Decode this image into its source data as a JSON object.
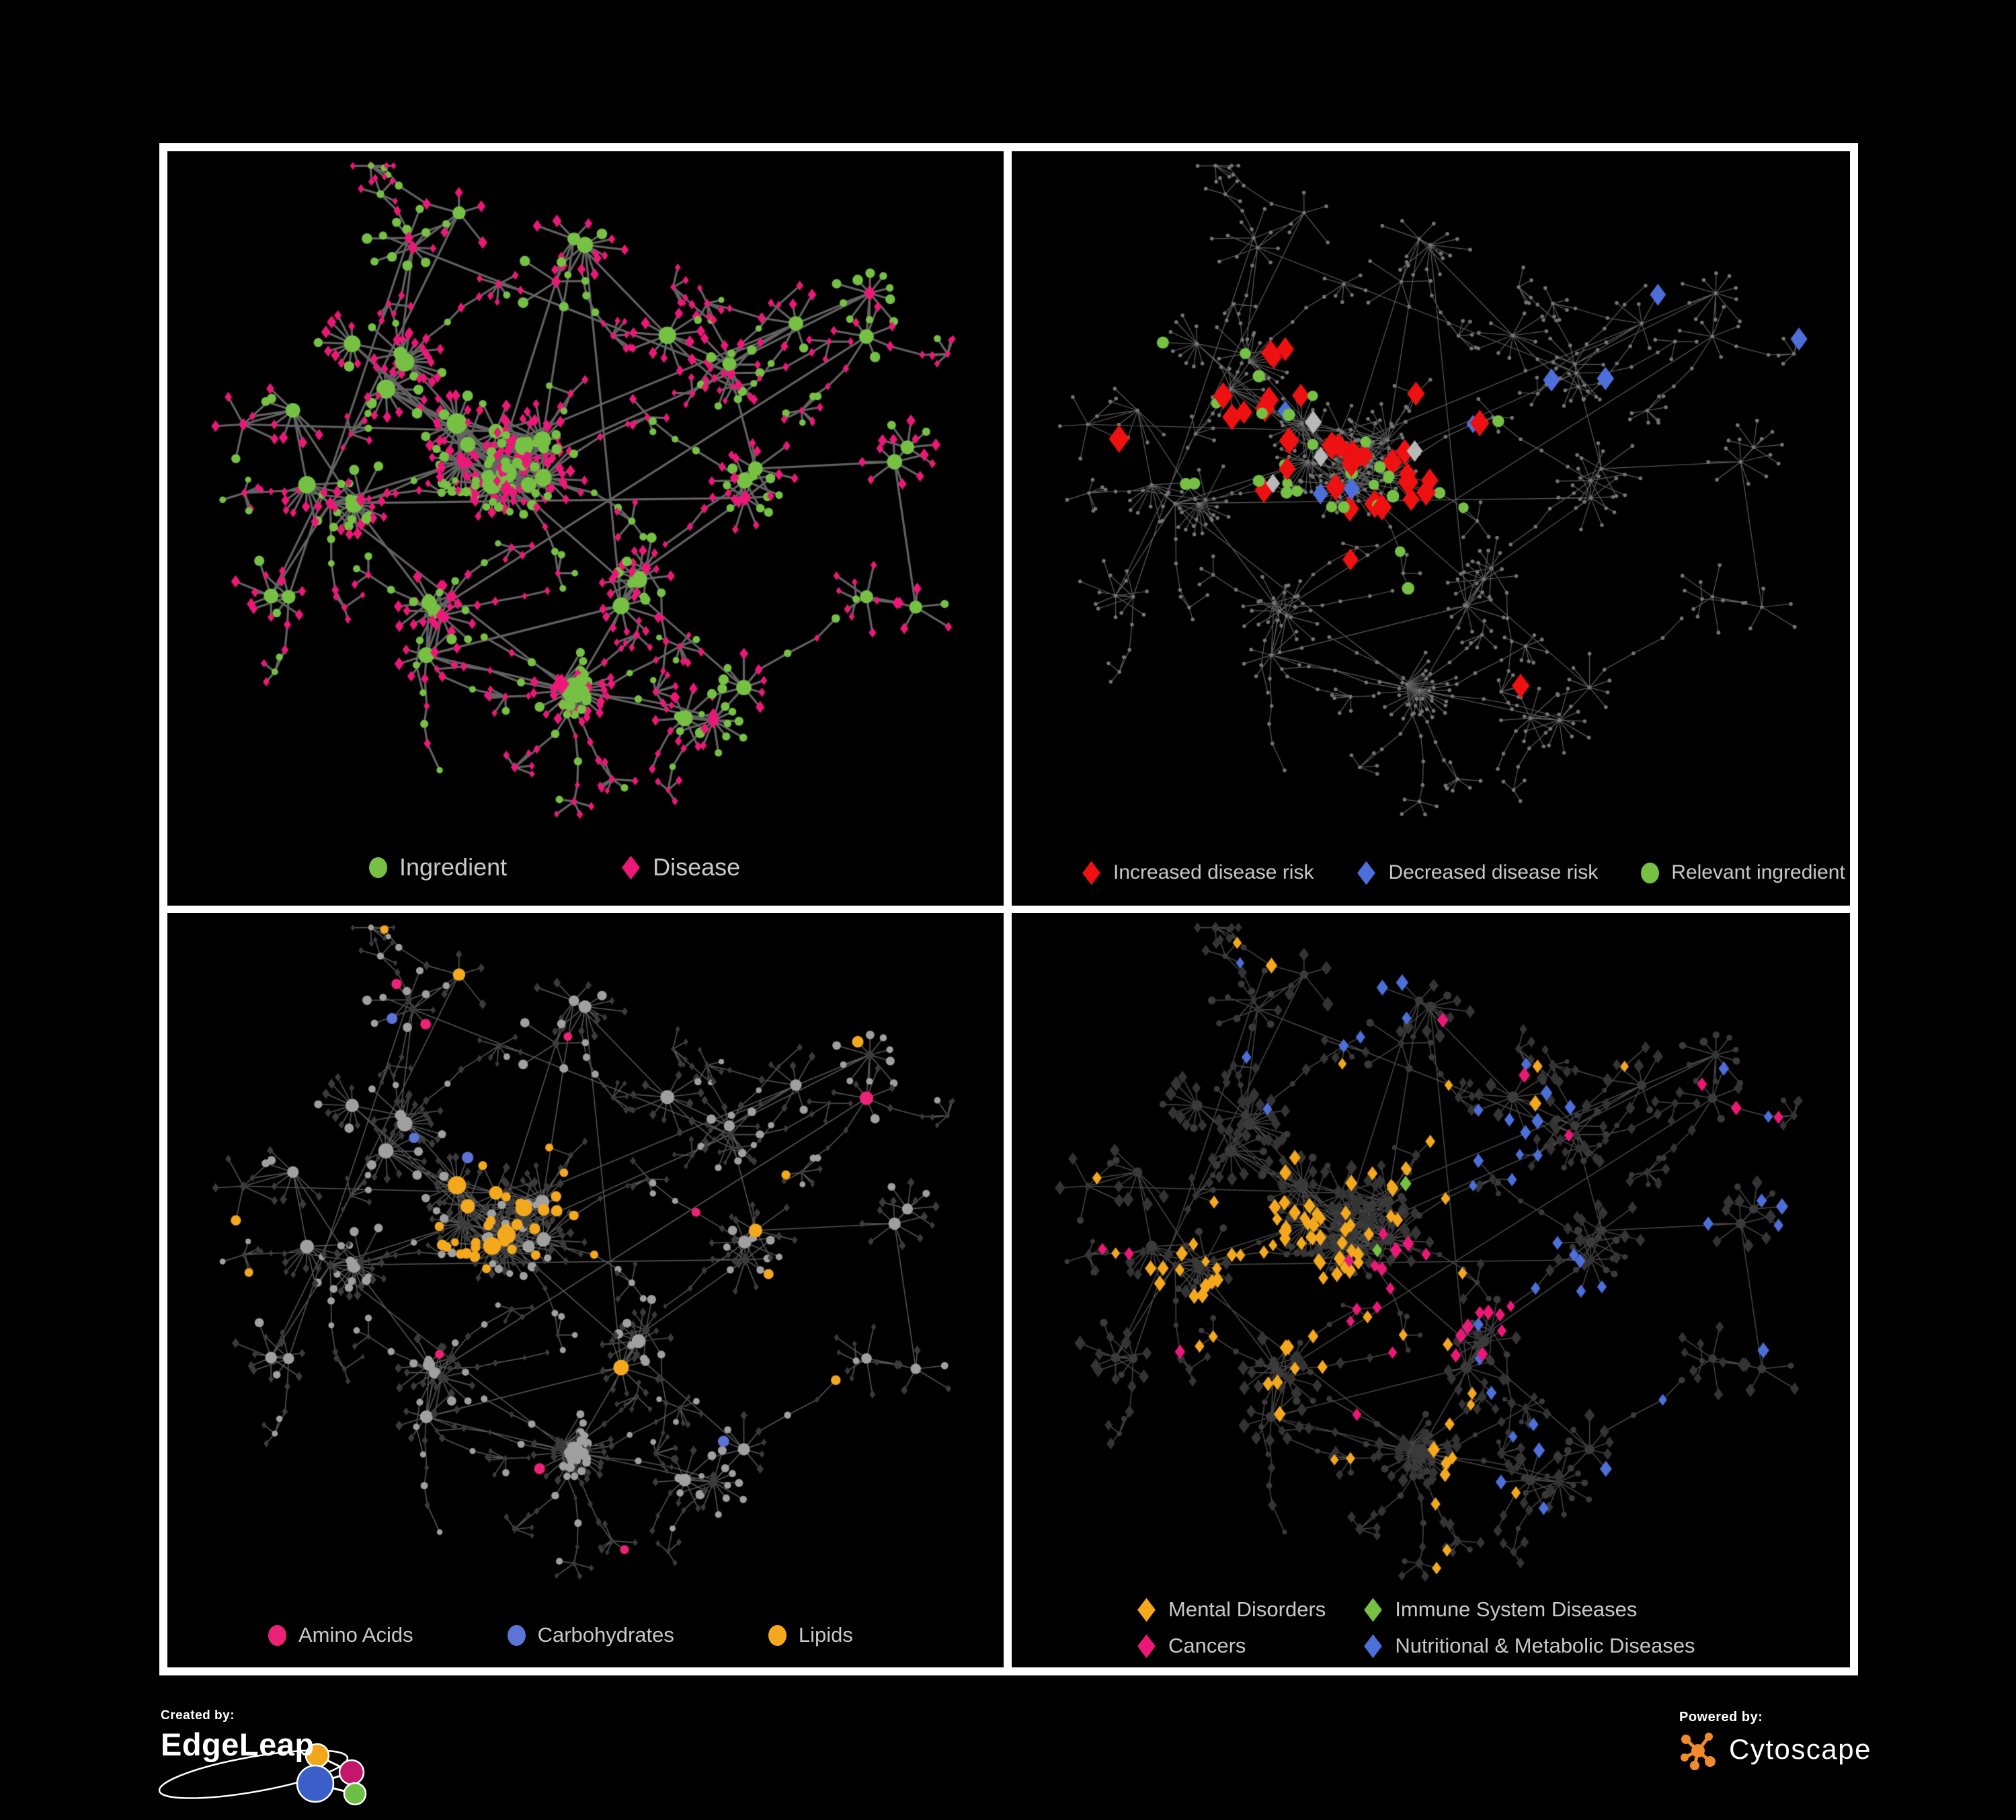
{
  "colors": {
    "background": "#000000",
    "panel_border": "#ffffff",
    "legend_text": "#c8c8c8",
    "footer_text": "#ffffff",
    "cytoscape_orange": "#ef8b2c"
  },
  "panels": [
    {
      "id": "ingredient-disease-network",
      "legend": [
        {
          "label": "Ingredient",
          "shape": "circle",
          "color": "#76c043"
        },
        {
          "label": "Disease",
          "shape": "diamond",
          "color": "#ec1878"
        }
      ]
    },
    {
      "id": "disease-risk-network",
      "legend": [
        {
          "label": "Increased disease risk",
          "shape": "diamond",
          "color": "#ee1111"
        },
        {
          "label": "Decreased disease risk",
          "shape": "diamond",
          "color": "#4d6fd9"
        },
        {
          "label": "Relevant ingredient",
          "shape": "circle",
          "color": "#76c043"
        }
      ]
    },
    {
      "id": "ingredient-class-network",
      "legend": [
        {
          "label": "Amino Acids",
          "shape": "circle",
          "color": "#ec2277"
        },
        {
          "label": "Carbohydrates",
          "shape": "circle",
          "color": "#5b74d6"
        },
        {
          "label": "Lipids",
          "shape": "circle",
          "color": "#f4a81d"
        }
      ]
    },
    {
      "id": "disease-class-network",
      "legend": [
        {
          "label": "Mental Disorders",
          "shape": "diamond",
          "color": "#f4a81d"
        },
        {
          "label": "Immune System Diseases",
          "shape": "diamond",
          "color": "#76c043"
        },
        {
          "label": "Cancers",
          "shape": "diamond",
          "color": "#ec1878"
        },
        {
          "label": "Nutritional & Metabolic Diseases",
          "shape": "diamond",
          "color": "#4d6fd9"
        }
      ]
    }
  ],
  "footer": {
    "created_by_label": "Created by:",
    "created_by_name": "EdgeLeap",
    "powered_by_label": "Powered by:",
    "powered_by_name": "Cytoscape"
  },
  "network": {
    "seed": 7,
    "core": [
      0.4,
      0.42
    ],
    "anchors": [
      [
        0.4,
        0.42,
        13,
        0.055,
        7,
        16
      ],
      [
        0.27,
        0.3,
        4,
        0.05,
        6,
        14
      ],
      [
        0.21,
        0.48,
        4,
        0.045,
        6,
        12
      ],
      [
        0.3,
        0.66,
        4,
        0.05,
        6,
        13
      ],
      [
        0.46,
        0.76,
        2,
        0.03,
        18,
        26
      ],
      [
        0.57,
        0.6,
        3,
        0.045,
        6,
        12
      ],
      [
        0.7,
        0.46,
        3,
        0.05,
        6,
        12
      ],
      [
        0.64,
        0.28,
        3,
        0.045,
        6,
        12
      ],
      [
        0.5,
        0.14,
        3,
        0.05,
        5,
        10
      ],
      [
        0.32,
        0.12,
        3,
        0.05,
        5,
        10
      ],
      [
        0.13,
        0.38,
        2,
        0.04,
        5,
        9
      ],
      [
        0.8,
        0.22,
        3,
        0.05,
        6,
        12
      ],
      [
        0.88,
        0.42,
        2,
        0.035,
        5,
        9
      ],
      [
        0.66,
        0.76,
        3,
        0.05,
        6,
        12
      ],
      [
        0.86,
        0.6,
        2,
        0.035,
        5,
        9
      ],
      [
        0.15,
        0.62,
        2,
        0.04,
        5,
        9
      ]
    ],
    "render": {
      "p1": {
        "edge": "#7b7b7b",
        "edgeWidth": 3.2,
        "edgeAlpha": 0.8
      },
      "p2": {
        "edge": "#686868",
        "edgeWidth": 1.2,
        "edgeAlpha": 0.9,
        "dot": "#757575",
        "gray": "#b8b8b8"
      },
      "p3": {
        "edge": "#9a9a9a",
        "edgeWidth": 1.6,
        "edgeAlpha": 0.55,
        "circle": "#a0a0a0",
        "diamond": "#3b3b3b"
      },
      "p4": {
        "edge": "#8f8f8f",
        "edgeWidth": 1.5,
        "edgeAlpha": 0.5,
        "circle": "#3a3a3a",
        "diamond": "#343434"
      }
    }
  }
}
